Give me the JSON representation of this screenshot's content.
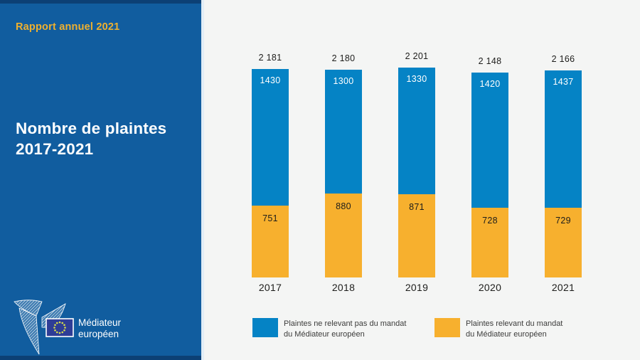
{
  "colors": {
    "sidebar_blue": "#115d9f",
    "sidebar_edge": "#0c4075",
    "background": "#f4f5f4",
    "bar_blue": "#0583c5",
    "bar_yellow": "#f7b02e",
    "accent_yellow_text": "#efb02e",
    "flag_blue": "#2e3d96",
    "star_yellow": "#d8de48"
  },
  "sidebar": {
    "report_label": "Rapport annuel 2021",
    "title_line1": "Nombre de plaintes",
    "title_line2": "2017-2021",
    "logo": {
      "name_line1": "Médiateur",
      "name_line2": "européen"
    }
  },
  "chart_data": {
    "type": "bar",
    "stacked": true,
    "title": "Nombre de plaintes 2017-2021",
    "categories": [
      "2017",
      "2018",
      "2019",
      "2020",
      "2021"
    ],
    "totals": [
      2181,
      2180,
      2201,
      2148,
      2166
    ],
    "totals_labels": [
      "2 181",
      "2 180",
      "2 201",
      "2 148",
      "2 166"
    ],
    "series": [
      {
        "name": "Plaintes ne relevant pas du mandat du Médiateur européen",
        "color_key": "bar_blue",
        "stack_position": "top",
        "values": [
          1430,
          1300,
          1330,
          1420,
          1437
        ]
      },
      {
        "name": "Plaintes relevant du mandat du Médiateur européen",
        "color_key": "bar_yellow",
        "stack_position": "bottom",
        "values": [
          751,
          880,
          871,
          728,
          729
        ]
      }
    ],
    "ylim": [
      0,
      2201
    ],
    "grid": false,
    "legend_position": "bottom",
    "legend": [
      {
        "label_line1": "Plaintes ne relevant pas du mandat",
        "label_line2": "du Médiateur européen",
        "color_key": "bar_blue"
      },
      {
        "label_line1": "Plaintes relevant du mandat",
        "label_line2": "du Médiateur européen",
        "color_key": "bar_yellow"
      }
    ]
  }
}
